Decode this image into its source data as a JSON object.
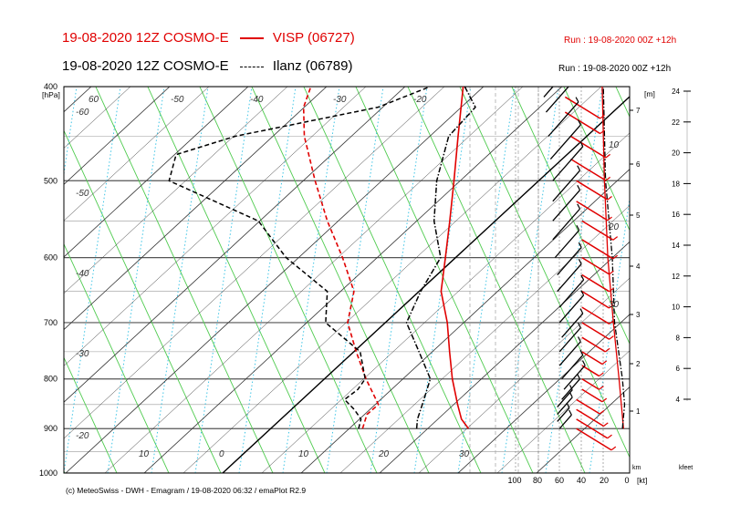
{
  "header": {
    "line1": {
      "model": "19-08-2020 12Z COSMO-E",
      "station": "VISP (06727)",
      "run": "Run : 19-08-2020 00Z +12h",
      "color": "#e00000"
    },
    "line2": {
      "model": "19-08-2020 12Z COSMO-E",
      "station": "Ilanz (06789)",
      "run": "Run : 19-08-2020 00Z +12h",
      "color": "#000000"
    }
  },
  "footer": {
    "credit": "(c) MeteoSwiss - DWH - Emagram / 19-08-2020  06:32 / emaPlot R2.9"
  },
  "chart_data": {
    "type": "line",
    "ylabel": "[hPa]",
    "ylim": [
      1000,
      400
    ],
    "y_scale": "log",
    "y_ticks": [
      400,
      500,
      600,
      700,
      800,
      900,
      1000
    ],
    "isotherm_labels": [
      "-60",
      "-50",
      "-40",
      "-30",
      "-20",
      "-10",
      "0",
      "10",
      "20",
      "30"
    ],
    "lower_temp_labels": [
      "10",
      "0",
      "10",
      "20",
      "30"
    ],
    "left_temp_labels": [
      "-60",
      "-50",
      "-40",
      "-30",
      "-20"
    ],
    "top_temp_labels": [
      "60",
      "-50",
      "-40",
      "-30",
      "-20"
    ],
    "height_km_label": "[m]",
    "height_km_ticks": [
      "1",
      "2",
      "3",
      "4",
      "5",
      "6",
      "7"
    ],
    "kfeet_ticks": [
      "4",
      "6",
      "8",
      "10",
      "12",
      "14",
      "16",
      "18",
      "20",
      "22",
      "24"
    ],
    "kfeet_label": "kfeet",
    "km_label": "km",
    "wind_axis_ticks": [
      "100",
      "80",
      "60",
      "40",
      "20",
      "0"
    ],
    "wind_axis_unit": "[kt]",
    "wind_panel_labels": [
      "10",
      "20",
      "30"
    ],
    "series": [
      {
        "name": "VISP (06727)",
        "variable": "temperature",
        "style": "solid",
        "color": "#e00000",
        "points": [
          [
            900,
            25.2
          ],
          [
            880,
            23.0
          ],
          [
            850,
            20.5
          ],
          [
            800,
            16.3
          ],
          [
            750,
            12.2
          ],
          [
            700,
            7.9
          ],
          [
            650,
            2.8
          ],
          [
            600,
            -1.3
          ],
          [
            550,
            -5.8
          ],
          [
            500,
            -10.8
          ],
          [
            450,
            -16.4
          ],
          [
            400,
            -22.6
          ]
        ]
      },
      {
        "name": "VISP (06727)",
        "variable": "dewpoint",
        "style": "dashed",
        "color": "#e00000",
        "points": [
          [
            900,
            11.7
          ],
          [
            870,
            10.3
          ],
          [
            850,
            10.4
          ],
          [
            800,
            5.3
          ],
          [
            750,
            0.3
          ],
          [
            700,
            -4.8
          ],
          [
            650,
            -8.3
          ],
          [
            600,
            -14.4
          ],
          [
            550,
            -21.4
          ],
          [
            500,
            -28.5
          ],
          [
            450,
            -36.0
          ],
          [
            420,
            -40.1
          ],
          [
            400,
            -42.0
          ]
        ]
      },
      {
        "name": "Ilanz (06789)",
        "variable": "temperature",
        "style": "dashdot",
        "color": "#000000",
        "points": [
          [
            900,
            18.6
          ],
          [
            880,
            17.4
          ],
          [
            850,
            16.0
          ],
          [
            800,
            13.5
          ],
          [
            750,
            8.3
          ],
          [
            700,
            2.7
          ],
          [
            650,
            0.2
          ],
          [
            600,
            -1.9
          ],
          [
            550,
            -7.8
          ],
          [
            500,
            -13.0
          ],
          [
            450,
            -17.6
          ],
          [
            420,
            -18.2
          ],
          [
            400,
            -22.4
          ]
        ]
      },
      {
        "name": "Ilanz (06789)",
        "variable": "dewpoint",
        "style": "dashed",
        "color": "#000000",
        "points": [
          [
            900,
            11.2
          ],
          [
            880,
            10.2
          ],
          [
            860,
            8.0
          ],
          [
            840,
            5.4
          ],
          [
            820,
            5.7
          ],
          [
            800,
            5.2
          ],
          [
            750,
            0.8
          ],
          [
            700,
            -7.6
          ],
          [
            650,
            -11.7
          ],
          [
            600,
            -21.6
          ],
          [
            550,
            -30.2
          ],
          [
            500,
            -47.1
          ],
          [
            470,
            -49.8
          ],
          [
            450,
            -44.8
          ],
          [
            420,
            -30.6
          ],
          [
            400,
            -26.8
          ]
        ]
      }
    ],
    "wind_profiles": [
      {
        "name": "VISP (06727)",
        "color": "#e00000",
        "profile_kt": [
          [
            900,
            3
          ],
          [
            800,
            7
          ],
          [
            700,
            12
          ],
          [
            600,
            17
          ],
          [
            500,
            20
          ],
          [
            400,
            22
          ]
        ],
        "barbs": [
          [
            900,
            45,
            45
          ],
          [
            880,
            45,
            40
          ],
          [
            860,
            45,
            35
          ],
          [
            840,
            45,
            30
          ],
          [
            820,
            40,
            26
          ],
          [
            800,
            40,
            22
          ],
          [
            775,
            40,
            22
          ],
          [
            750,
            40,
            26
          ],
          [
            725,
            40,
            30
          ],
          [
            700,
            40,
            35
          ],
          [
            675,
            40,
            35
          ],
          [
            650,
            40,
            35
          ],
          [
            625,
            40,
            35
          ],
          [
            600,
            40,
            35
          ],
          [
            575,
            40,
            40
          ],
          [
            550,
            40,
            40
          ],
          [
            525,
            45,
            40
          ],
          [
            500,
            45,
            40
          ],
          [
            475,
            50,
            45
          ],
          [
            450,
            50,
            45
          ],
          [
            425,
            55,
            45
          ],
          [
            410,
            55,
            45
          ]
        ]
      },
      {
        "name": "Ilanz (06789)",
        "color": "#000000",
        "profile_kt": [
          [
            900,
            4
          ],
          [
            850,
            2
          ],
          [
            800,
            4
          ],
          [
            700,
            11
          ],
          [
            600,
            13
          ],
          [
            500,
            19
          ],
          [
            400,
            21
          ]
        ],
        "barbs": [
          [
            900,
            60,
            20
          ],
          [
            885,
            62,
            20
          ],
          [
            870,
            62,
            25
          ],
          [
            855,
            62,
            25
          ],
          [
            840,
            58,
            30
          ],
          [
            820,
            56,
            35
          ],
          [
            800,
            58,
            35
          ],
          [
            775,
            60,
            35
          ],
          [
            750,
            60,
            35
          ],
          [
            725,
            58,
            35
          ],
          [
            700,
            60,
            40
          ],
          [
            675,
            60,
            40
          ],
          [
            650,
            62,
            40
          ],
          [
            625,
            62,
            40
          ],
          [
            600,
            64,
            40
          ],
          [
            575,
            66,
            45
          ],
          [
            550,
            66,
            45
          ],
          [
            525,
            66,
            45
          ],
          [
            500,
            66,
            50
          ],
          [
            475,
            68,
            50
          ],
          [
            450,
            70,
            50
          ],
          [
            425,
            72,
            50
          ],
          [
            410,
            74,
            50
          ]
        ]
      }
    ]
  }
}
